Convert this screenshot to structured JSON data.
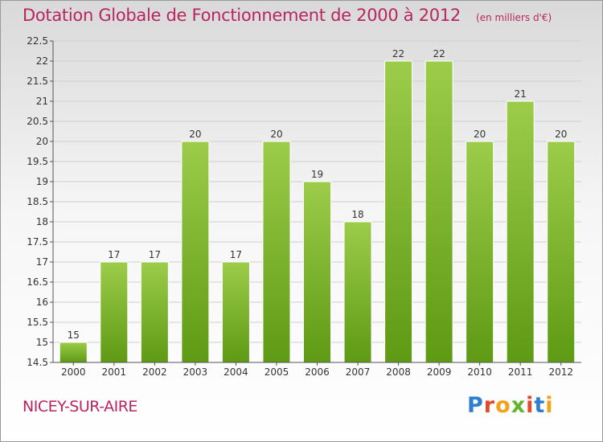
{
  "header": {
    "title": "Dotation Globale de Fonctionnement de 2000 à 2012",
    "subtitle": "(en milliers d'€)"
  },
  "footer": {
    "commune": "NICEY-SUR-AIRE",
    "brand": "Proxiti"
  },
  "colors": {
    "title": "#b8255f",
    "bar_top": "#9ccc4a",
    "bar_bottom": "#5e9a14",
    "grid": "#cfcfcf",
    "axis": "#555555"
  },
  "chart_data": {
    "type": "bar",
    "title": "Dotation Globale de Fonctionnement de 2000 à 2012",
    "subtitle": "(en milliers d'€)",
    "categories": [
      "2000",
      "2001",
      "2002",
      "2003",
      "2004",
      "2005",
      "2006",
      "2007",
      "2008",
      "2009",
      "2010",
      "2011",
      "2012"
    ],
    "values": [
      15,
      17,
      17,
      20,
      17,
      20,
      19,
      18,
      22,
      22,
      20,
      21,
      20
    ],
    "data_labels": [
      "15",
      "17",
      "17",
      "20",
      "17",
      "20",
      "19",
      "18",
      "22",
      "22",
      "20",
      "21",
      "20"
    ],
    "ylim": [
      14.5,
      22.5
    ],
    "yticks": [
      14.5,
      15,
      15.5,
      16,
      16.5,
      17,
      17.5,
      18,
      18.5,
      19,
      19.5,
      20,
      20.5,
      21,
      21.5,
      22,
      22.5
    ],
    "ytick_labels": [
      "14.5",
      "15",
      "15.5",
      "16",
      "16.5",
      "17",
      "17.5",
      "18",
      "18.5",
      "19",
      "19.5",
      "20",
      "20.5",
      "21",
      "21.5",
      "22",
      "22.5"
    ],
    "grid": true,
    "legend": "none"
  }
}
